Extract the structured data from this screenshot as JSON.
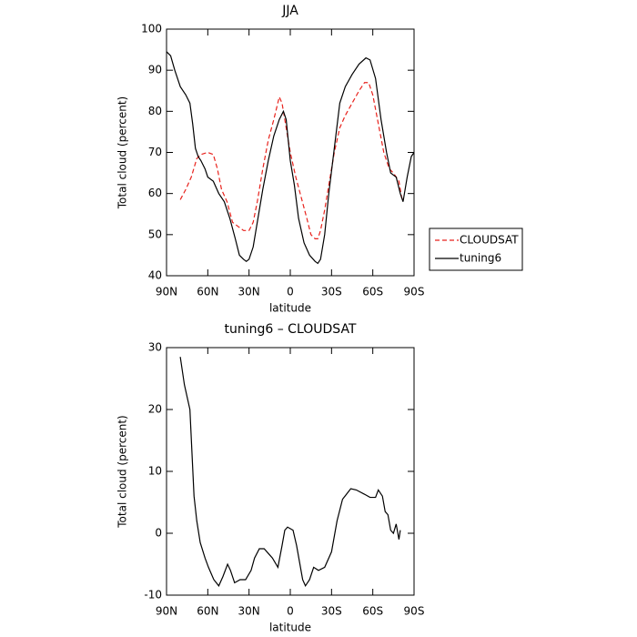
{
  "chart_data": [
    {
      "type": "line",
      "title": "JJA",
      "xlabel": "latitude",
      "ylabel": "Total cloud (percent)",
      "xlim": [
        90,
        -90
      ],
      "ylim": [
        40,
        100
      ],
      "xticks": [
        {
          "value": 90,
          "label": "90N"
        },
        {
          "value": 60,
          "label": "60N"
        },
        {
          "value": 30,
          "label": "30N"
        },
        0,
        {
          "value": -30,
          "label": "30S"
        },
        {
          "value": -60,
          "label": "60S"
        },
        {
          "value": -90,
          "label": "90S"
        }
      ],
      "yticks": [
        40,
        50,
        60,
        70,
        80,
        90,
        100
      ],
      "legend": "right",
      "series": [
        {
          "name": "CLOUDSAT",
          "color": "#e8221c",
          "linestyle": "dashed",
          "x": [
            80,
            76,
            72,
            68,
            65,
            60,
            56,
            53,
            50,
            46,
            42,
            38,
            34,
            30,
            27,
            24,
            20,
            16,
            12,
            8,
            6,
            4,
            0,
            -4,
            -8,
            -12,
            -15,
            -18,
            -20,
            -22,
            -25,
            -28,
            -32,
            -36,
            -40,
            -45,
            -50,
            -54,
            -57,
            -60,
            -64,
            -68,
            -72,
            -75,
            -79,
            -81,
            -82
          ],
          "values": [
            58.5,
            61,
            64,
            68.5,
            69.5,
            70,
            69.5,
            66,
            61,
            58,
            53,
            52,
            51,
            51,
            53,
            58,
            66,
            73,
            78,
            83.5,
            82,
            78,
            70,
            64,
            59,
            54,
            50,
            49,
            49,
            51,
            56,
            62,
            70,
            76,
            79,
            82,
            85,
            87,
            87,
            84,
            77,
            70,
            66,
            65,
            63,
            59,
            58.5
          ]
        },
        {
          "name": "tuning6",
          "color": "#000000",
          "linestyle": "solid",
          "x": [
            90,
            87,
            84,
            80,
            76,
            73,
            71,
            69,
            67,
            65,
            62,
            60,
            56,
            52,
            48,
            44,
            40,
            37,
            34,
            32,
            30,
            27,
            24,
            20,
            16,
            12,
            8,
            5,
            3,
            0,
            -3,
            -6,
            -10,
            -14,
            -18,
            -20,
            -22,
            -25,
            -28,
            -32,
            -36,
            -40,
            -45,
            -50,
            -55,
            -58,
            -62,
            -66,
            -70,
            -73,
            -77,
            -80,
            -82,
            -85,
            -88,
            -90
          ],
          "values": [
            94.5,
            93.5,
            90,
            86,
            84,
            82,
            77,
            71,
            69,
            68,
            66,
            64,
            63,
            60,
            58,
            54,
            49,
            45,
            44,
            43.5,
            44,
            47,
            53,
            61,
            68,
            74,
            78,
            80,
            78,
            68,
            62,
            54,
            48,
            45,
            43.5,
            43,
            44,
            50,
            60,
            71,
            82,
            86,
            89,
            91.5,
            93,
            92.5,
            88,
            78,
            70,
            65,
            64,
            60,
            58,
            64,
            69,
            70
          ]
        }
      ]
    },
    {
      "type": "line",
      "title": "tuning6 – CLOUDSAT",
      "xlabel": "latitude",
      "ylabel": "Total cloud (percent)",
      "xlim": [
        90,
        -90
      ],
      "ylim": [
        -10,
        30
      ],
      "xticks": [
        {
          "value": 90,
          "label": "90N"
        },
        {
          "value": 60,
          "label": "60N"
        },
        {
          "value": 30,
          "label": "30N"
        },
        0,
        {
          "value": -30,
          "label": "30S"
        },
        {
          "value": -60,
          "label": "60S"
        },
        {
          "value": -90,
          "label": "90S"
        }
      ],
      "yticks": [
        -10,
        0,
        10,
        20,
        30
      ],
      "series": [
        {
          "color": "#000000",
          "linestyle": "solid",
          "x": [
            80,
            77,
            73,
            70,
            68,
            65.5,
            62,
            59.5,
            55.6,
            52,
            49,
            45.6,
            43.5,
            40.5,
            36.5,
            32.5,
            28.5,
            26,
            22.5,
            19,
            15,
            13,
            9,
            6,
            4,
            2,
            -2,
            -4.6,
            -7,
            -9,
            -11,
            -14,
            -17,
            -20.5,
            -25,
            -30,
            -34,
            -38,
            -44,
            -48,
            -54,
            -58,
            -62,
            -64,
            -67,
            -69,
            -71,
            -73,
            -75,
            -77,
            -79,
            -80
          ],
          "values": [
            28.5,
            24,
            20,
            6,
            2,
            -1.5,
            -4,
            -5.5,
            -7.5,
            -8.5,
            -7,
            -5,
            -6,
            -8,
            -7.5,
            -7.5,
            -6,
            -4,
            -2.5,
            -2.5,
            -3.5,
            -4,
            -5.5,
            -2,
            0.5,
            1,
            0.5,
            -2,
            -5,
            -7.5,
            -8.5,
            -7.5,
            -5.5,
            -6,
            -5.5,
            -3,
            2,
            5.5,
            7.2,
            7,
            6.3,
            5.8,
            5.8,
            7,
            6,
            3.5,
            3,
            0.5,
            0,
            1.5,
            -1,
            0.5
          ]
        }
      ]
    }
  ]
}
